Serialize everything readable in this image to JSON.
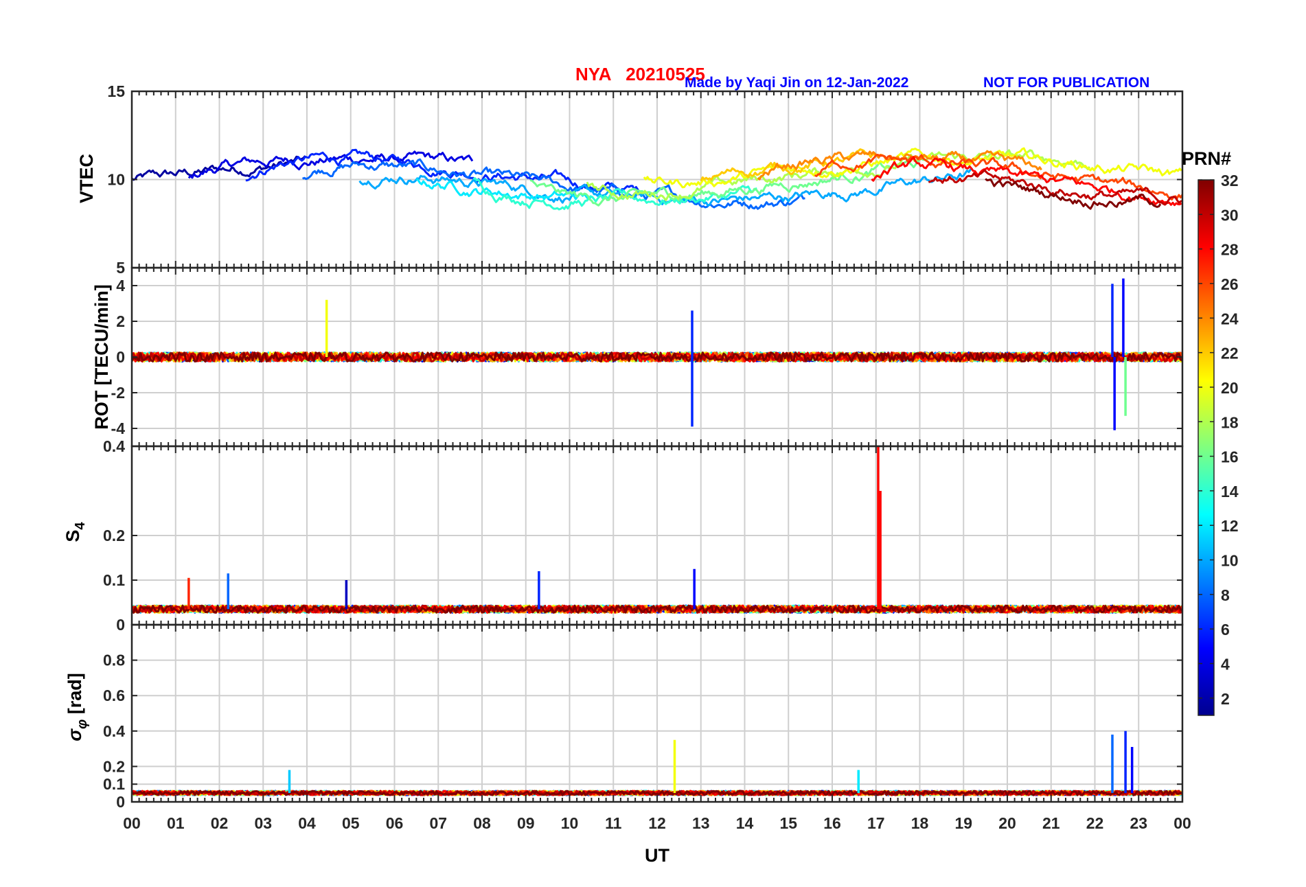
{
  "header": {
    "title": "NYA   20210525",
    "credit": "Made by Yaqi Jin on 12-Jan-2022",
    "notice": "NOT FOR PUBLICATION"
  },
  "colors": {
    "title": "#ff0000",
    "credit": "#0000ff",
    "notice": "#0000ff"
  },
  "chart_data": [
    {
      "type": "line",
      "ylabel": "VTEC",
      "ylim": [
        5,
        15
      ],
      "yticks": [
        5,
        10,
        15
      ],
      "ytick_labels": [
        "5",
        "10",
        "15"
      ],
      "baseline": 10,
      "noise": 0.35,
      "spikes": []
    },
    {
      "type": "line",
      "ylabel": "ROT [TECU/min]",
      "ylim": [
        -5,
        5
      ],
      "yticks": [
        -4,
        -2,
        0,
        2,
        4
      ],
      "ytick_labels": [
        "-4",
        "-2",
        "0",
        "2",
        "4"
      ],
      "baseline": 0,
      "noise": 0.25,
      "spikes": [
        {
          "x": 4.45,
          "y": 3.2,
          "prn": 20
        },
        {
          "x": 12.8,
          "y": -3.9,
          "prn": 6
        },
        {
          "x": 12.8,
          "y": 2.6,
          "prn": 6
        },
        {
          "x": 22.4,
          "y": 4.1,
          "prn": 6
        },
        {
          "x": 22.45,
          "y": -4.1,
          "prn": 5
        },
        {
          "x": 22.65,
          "y": 4.4,
          "prn": 5
        },
        {
          "x": 22.7,
          "y": -3.3,
          "prn": 16
        }
      ]
    },
    {
      "type": "line",
      "ylabel": "S4",
      "ylim": [
        0,
        0.4
      ],
      "yticks": [
        0,
        0.1,
        0.2,
        0.4
      ],
      "ytick_labels": [
        "0",
        "0.1",
        "0.2",
        "0.4"
      ],
      "baseline": 0.035,
      "noise": 0.008,
      "spikes": [
        {
          "x": 1.3,
          "y": 0.105,
          "prn": 27
        },
        {
          "x": 2.2,
          "y": 0.115,
          "prn": 8
        },
        {
          "x": 4.9,
          "y": 0.1,
          "prn": 3
        },
        {
          "x": 9.3,
          "y": 0.12,
          "prn": 6
        },
        {
          "x": 12.85,
          "y": 0.125,
          "prn": 5
        },
        {
          "x": 17.05,
          "y": 0.4,
          "prn": 28
        },
        {
          "x": 17.1,
          "y": 0.3,
          "prn": 28
        }
      ]
    },
    {
      "type": "line",
      "ylabel": "σφ [rad]",
      "ylim": [
        0,
        1
      ],
      "yticks": [
        0,
        0.1,
        0.2,
        0.4,
        0.6,
        0.8
      ],
      "ytick_labels": [
        "0",
        "0.1",
        "0.2",
        "0.4",
        "0.6",
        "0.8"
      ],
      "baseline": 0.05,
      "noise": 0.012,
      "spikes": [
        {
          "x": 3.6,
          "y": 0.18,
          "prn": 11
        },
        {
          "x": 12.4,
          "y": 0.35,
          "prn": 20
        },
        {
          "x": 16.6,
          "y": 0.18,
          "prn": 12
        },
        {
          "x": 22.4,
          "y": 0.38,
          "prn": 8
        },
        {
          "x": 22.7,
          "y": 0.4,
          "prn": 6
        },
        {
          "x": 22.85,
          "y": 0.31,
          "prn": 5
        }
      ]
    }
  ],
  "x_axis": {
    "label": "UT",
    "range": [
      0,
      24
    ],
    "tick_labels": [
      "00",
      "01",
      "02",
      "03",
      "04",
      "05",
      "06",
      "07",
      "08",
      "09",
      "10",
      "11",
      "12",
      "13",
      "14",
      "15",
      "16",
      "17",
      "18",
      "19",
      "20",
      "21",
      "22",
      "23",
      "00"
    ]
  },
  "colorbar": {
    "label": "PRN#",
    "range": [
      1,
      32
    ],
    "tick_labels": [
      "2",
      "4",
      "6",
      "8",
      "10",
      "12",
      "14",
      "16",
      "18",
      "20",
      "22",
      "24",
      "26",
      "28",
      "30",
      "32"
    ],
    "tick_values": [
      2,
      4,
      6,
      8,
      10,
      12,
      14,
      16,
      18,
      20,
      22,
      24,
      26,
      28,
      30,
      32
    ]
  }
}
